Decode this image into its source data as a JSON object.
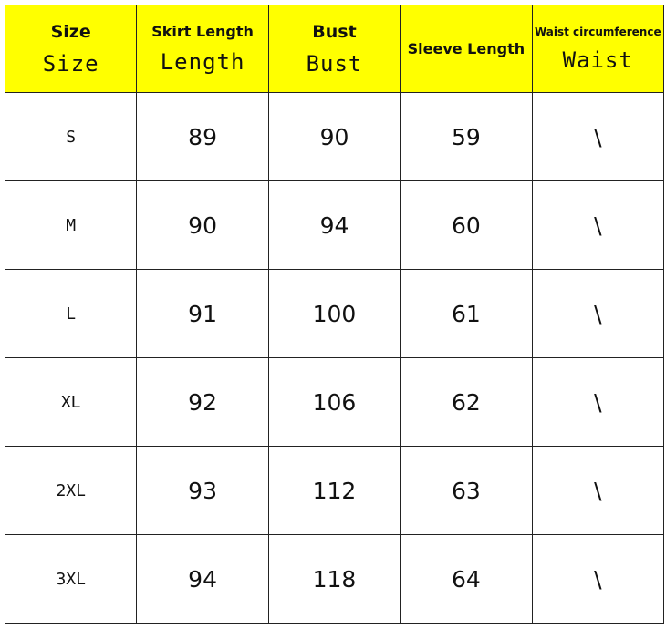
{
  "header": {
    "columns": [
      {
        "title": "Size",
        "subtitle": "Size"
      },
      {
        "title": "Skirt Length",
        "subtitle": "Length"
      },
      {
        "title": "Bust",
        "subtitle": "Bust"
      },
      {
        "title": "Sleeve Length",
        "subtitle": ""
      },
      {
        "title": "Waist circumference",
        "subtitle": "Waist"
      }
    ]
  },
  "rows": [
    {
      "size": "S",
      "length": "89",
      "bust": "90",
      "sleeve": "59",
      "waist": "\\"
    },
    {
      "size": "M",
      "length": "90",
      "bust": "94",
      "sleeve": "60",
      "waist": "\\"
    },
    {
      "size": "L",
      "length": "91",
      "bust": "100",
      "sleeve": "61",
      "waist": "\\"
    },
    {
      "size": "XL",
      "length": "92",
      "bust": "106",
      "sleeve": "62",
      "waist": "\\"
    },
    {
      "size": "2XL",
      "length": "93",
      "bust": "112",
      "sleeve": "63",
      "waist": "\\"
    },
    {
      "size": "3XL",
      "length": "94",
      "bust": "118",
      "sleeve": "64",
      "waist": "\\"
    }
  ],
  "colors": {
    "header_bg": "#ffff00",
    "border": "#222222"
  }
}
